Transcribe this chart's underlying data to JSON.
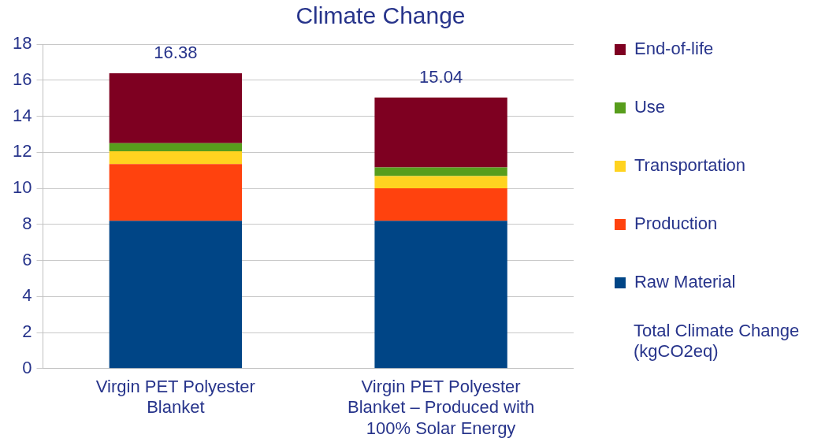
{
  "chart_data": {
    "type": "bar",
    "title": "Climate Change",
    "stacked": true,
    "categories": [
      "Virgin PET Polyester Blanket",
      "Virgin PET Polyester Blanket – Produced with 100% Solar Energy"
    ],
    "series": [
      {
        "name": "Raw Material",
        "color": "#004586",
        "values": [
          8.2,
          8.2
        ]
      },
      {
        "name": "Production",
        "color": "#ff420e",
        "values": [
          3.15,
          1.8
        ]
      },
      {
        "name": "Transportation",
        "color": "#ffd320",
        "values": [
          0.7,
          0.68
        ]
      },
      {
        "name": "Use",
        "color": "#579d1c",
        "values": [
          0.45,
          0.48
        ]
      },
      {
        "name": "End-of-life",
        "color": "#7e0021",
        "values": [
          3.88,
          3.88
        ]
      }
    ],
    "totals": [
      "16.38",
      "15.04"
    ],
    "annotations": [
      "Total Climate Change (kgCO2eq)"
    ],
    "ylim": [
      0,
      18
    ],
    "yticks": [
      0,
      2,
      4,
      6,
      8,
      10,
      12,
      14,
      16,
      18
    ],
    "grid": "y",
    "legend": "right"
  }
}
